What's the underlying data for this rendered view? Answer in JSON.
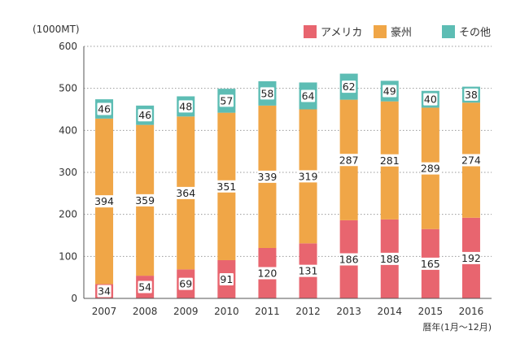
{
  "chart_data": {
    "type": "bar",
    "stacked": true,
    "unit_label": "(1000MT)",
    "xlabel": "暦年(1月〜12月)",
    "ylim": [
      0,
      600
    ],
    "y_ticks": [
      0,
      100,
      200,
      300,
      400,
      500,
      600
    ],
    "grid": true,
    "legend_position": "top-right",
    "categories": [
      "2007",
      "2008",
      "2009",
      "2010",
      "2011",
      "2012",
      "2013",
      "2014",
      "2015",
      "2016"
    ],
    "series": [
      {
        "name": "アメリカ",
        "color": "#e8656f",
        "values": [
          34,
          54,
          69,
          91,
          120,
          131,
          186,
          188,
          165,
          192
        ]
      },
      {
        "name": "豪州",
        "color": "#f0a647",
        "values": [
          394,
          359,
          364,
          351,
          339,
          319,
          287,
          281,
          289,
          274
        ]
      },
      {
        "name": "その他",
        "color": "#5dbdb4",
        "values": [
          46,
          46,
          48,
          57,
          58,
          64,
          62,
          49,
          40,
          38
        ]
      }
    ]
  }
}
